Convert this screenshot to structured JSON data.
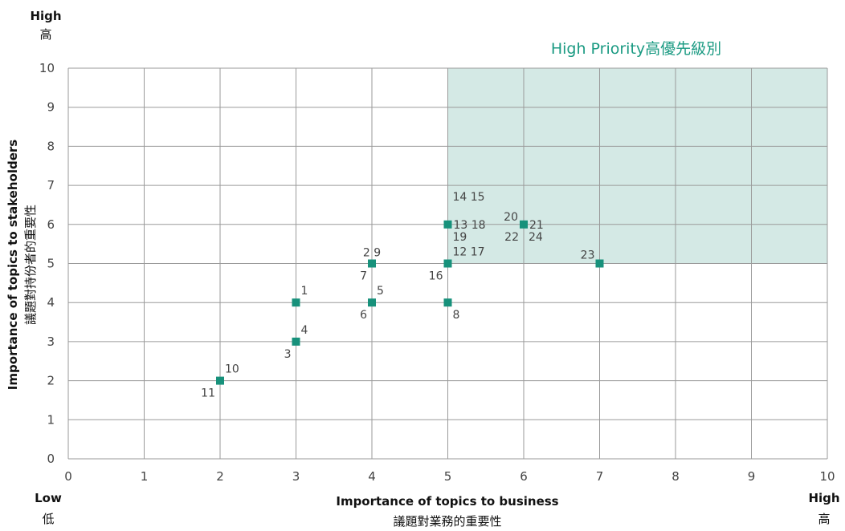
{
  "chart_data": {
    "type": "scatter",
    "xlabel": "Importance of topics to business",
    "xlabel_cn": "議題對業務的重要性",
    "ylabel": "Importance of topics to stakeholders",
    "ylabel_cn": "議題對持份者的重要性",
    "xlim": [
      0,
      10
    ],
    "ylim": [
      0,
      10
    ],
    "x_ticks": [
      "0",
      "1",
      "2",
      "3",
      "4",
      "5",
      "6",
      "7",
      "8",
      "9",
      "10"
    ],
    "y_ticks": [
      "0",
      "1",
      "2",
      "3",
      "4",
      "5",
      "6",
      "7",
      "8",
      "9",
      "10"
    ],
    "grid": true,
    "corner_labels": {
      "top": {
        "en": "High",
        "cn": "高"
      },
      "bottom_left": {
        "en": "Low",
        "cn": "低"
      },
      "bottom_right": {
        "en": "High",
        "cn": "高"
      }
    },
    "high_priority_region": {
      "label": "High Priority高優先級別",
      "x_range": [
        5,
        10
      ],
      "y_range": [
        5,
        10
      ],
      "color": "#d4e9e5",
      "label_color": "#1a9a82"
    },
    "marker_color": "#17917b",
    "points": [
      {
        "x": 2,
        "y": 2,
        "labels": [
          {
            "text": "10",
            "pos": "ne"
          },
          {
            "text": "11",
            "pos": "sw"
          }
        ]
      },
      {
        "x": 3,
        "y": 3,
        "labels": [
          {
            "text": "4",
            "pos": "ne"
          },
          {
            "text": "3",
            "pos": "sw"
          }
        ]
      },
      {
        "x": 3,
        "y": 4,
        "labels": [
          {
            "text": "1",
            "pos": "ne"
          }
        ]
      },
      {
        "x": 4,
        "y": 4,
        "labels": [
          {
            "text": "5",
            "pos": "ne"
          },
          {
            "text": "6",
            "pos": "sw"
          }
        ]
      },
      {
        "x": 4,
        "y": 5,
        "labels": [
          {
            "text": "2  9",
            "pos": "n"
          },
          {
            "text": "7",
            "pos": "sw"
          }
        ]
      },
      {
        "x": 5,
        "y": 4,
        "labels": [
          {
            "text": "8",
            "pos": "se"
          }
        ]
      },
      {
        "x": 5,
        "y": 5,
        "labels": [
          {
            "text": "12 17",
            "pos": "ne"
          },
          {
            "text": "16",
            "pos": "sw"
          }
        ]
      },
      {
        "x": 5,
        "y": 6,
        "labels": [
          {
            "text": "14 15",
            "pos": "ne2"
          },
          {
            "text": "13 18",
            "pos": "e"
          },
          {
            "text": "19",
            "pos": "se"
          }
        ]
      },
      {
        "x": 6,
        "y": 6,
        "labels": [
          {
            "text": "20",
            "pos": "w"
          },
          {
            "text": "21",
            "pos": "e"
          },
          {
            "text": "22",
            "pos": "sw"
          },
          {
            "text": "24",
            "pos": "se"
          }
        ]
      },
      {
        "x": 7,
        "y": 5,
        "labels": [
          {
            "text": "23",
            "pos": "nw"
          }
        ]
      }
    ]
  }
}
